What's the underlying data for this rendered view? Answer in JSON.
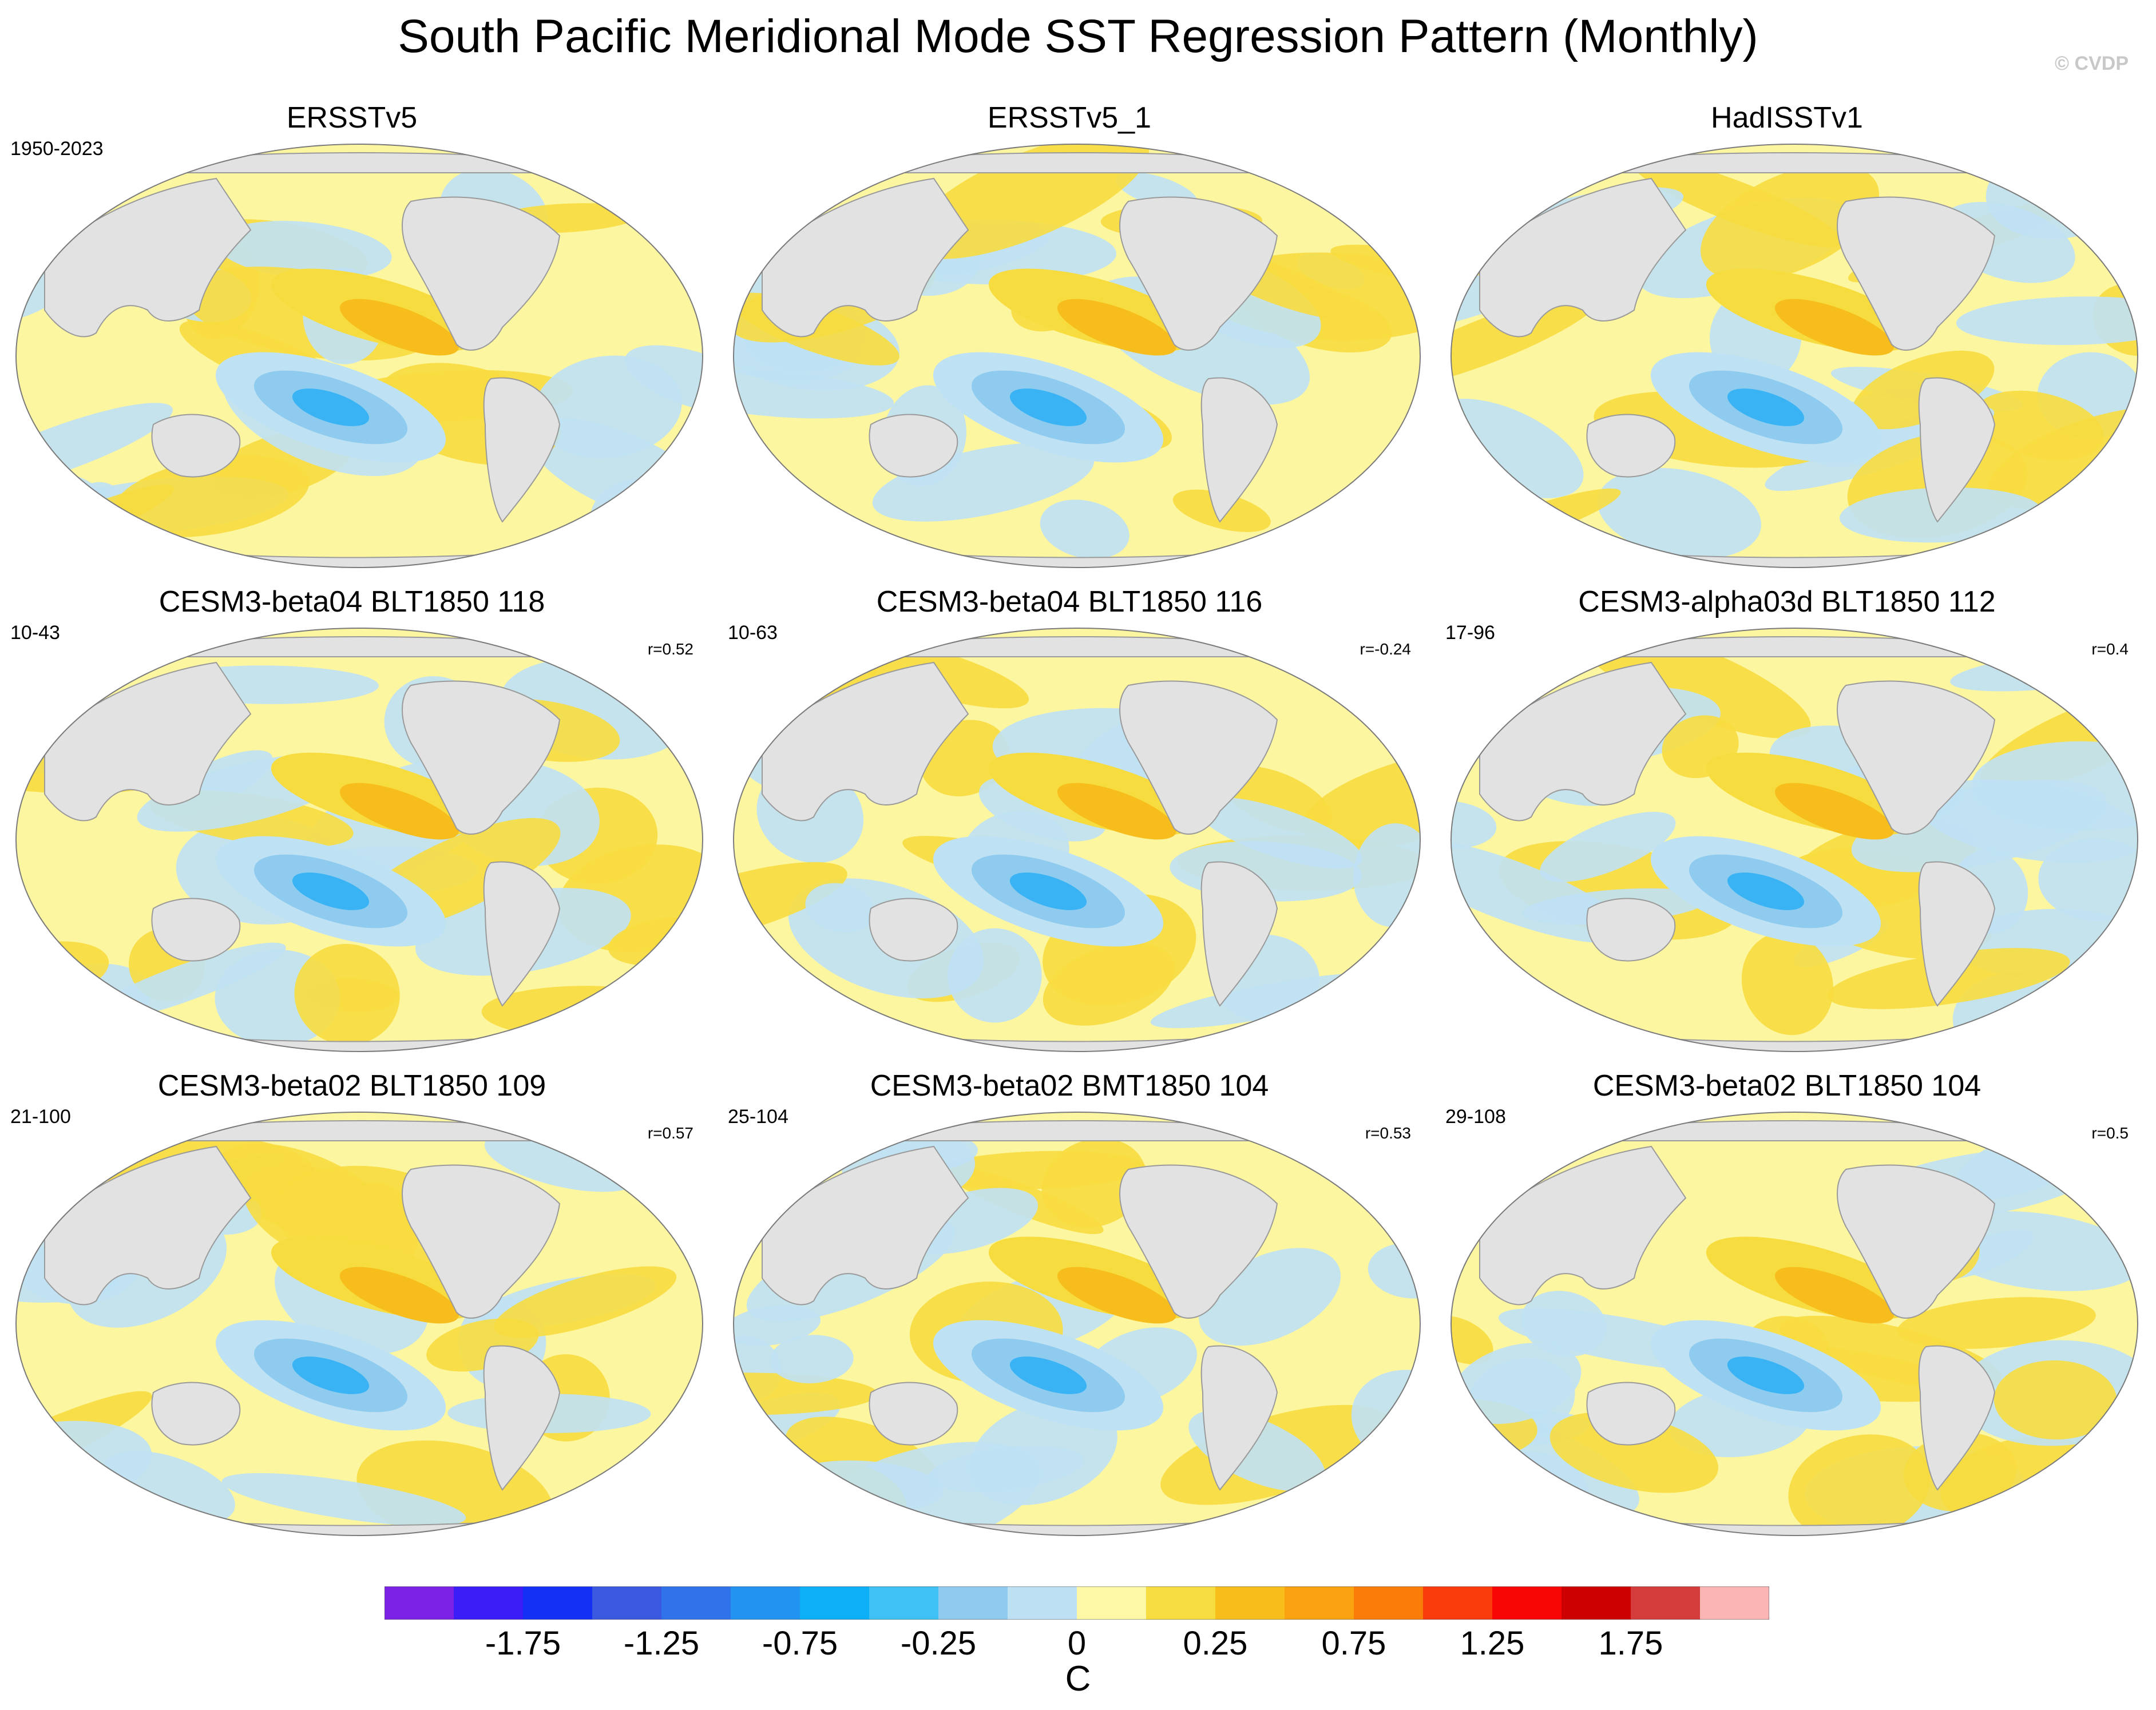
{
  "title": "South Pacific Meridional Mode SST Regression Pattern (Monthly)",
  "copyright": "© CVDP",
  "colors": {
    "land": "#e2e2e2",
    "ocean_neutral": "#fdf6a0",
    "cool_1": "#bfe1f4",
    "cool_2": "#8ecbef",
    "cool_3": "#3ab3f4",
    "warm_1": "#f7dc3f",
    "warm_2": "#f6bd1c"
  },
  "panels": [
    {
      "title": "ERSSTv5",
      "period": "1950-2023",
      "corr": ""
    },
    {
      "title": "ERSSTv5_1",
      "period": "",
      "corr": ""
    },
    {
      "title": "HadISSTv1",
      "period": "",
      "corr": ""
    },
    {
      "title": "CESM3-beta04 BLT1850 118",
      "period": "10-43",
      "corr": "r=0.52"
    },
    {
      "title": "CESM3-beta04 BLT1850 116",
      "period": "10-63",
      "corr": "r=-0.24"
    },
    {
      "title": "CESM3-alpha03d BLT1850 112",
      "period": "17-96",
      "corr": "r=0.4"
    },
    {
      "title": "CESM3-beta02 BLT1850 109",
      "period": "21-100",
      "corr": "r=0.57"
    },
    {
      "title": "CESM3-beta02 BMT1850 104",
      "period": "25-104",
      "corr": "r=0.53"
    },
    {
      "title": "CESM3-beta02 BLT1850 104",
      "period": "29-108",
      "corr": "r=0.5"
    }
  ],
  "colorbar": {
    "unit": "C",
    "tick_labels": [
      "-1.75",
      "-1.25",
      "-0.75",
      "-0.25",
      "0",
      "0.25",
      "0.75",
      "1.25",
      "1.75"
    ],
    "colors": [
      "#7b22e6",
      "#3a1df7",
      "#1430f5",
      "#3a58e0",
      "#2f72ea",
      "#2393f2",
      "#0db0f6",
      "#3fc1f6",
      "#8ecbef",
      "#bde0f2",
      "#fdf8a6",
      "#f7dc3f",
      "#f7bd1a",
      "#fba210",
      "#fa7c09",
      "#fa3b0b",
      "#f80606",
      "#cc0000",
      "#d53c3c",
      "#fbb5b5"
    ]
  }
}
